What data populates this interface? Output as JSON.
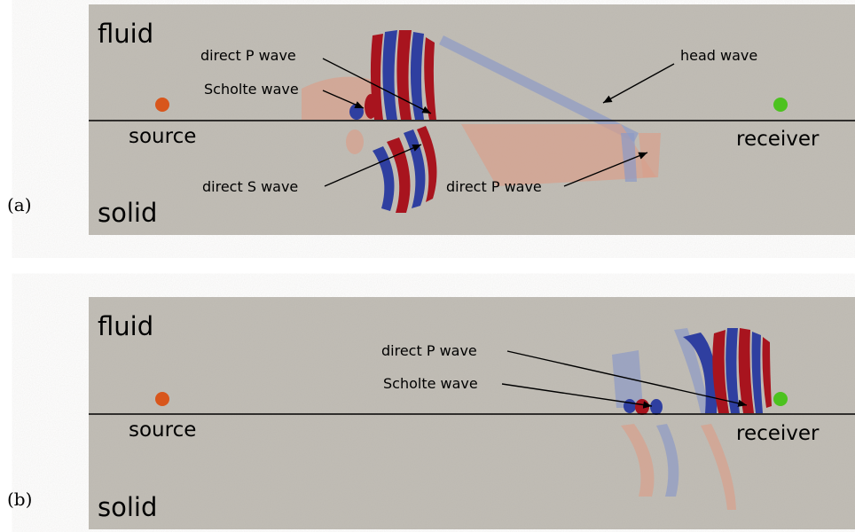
{
  "panels": [
    {
      "label": "(a)",
      "top_medium": "fluid",
      "bottom_medium": "solid",
      "source": "source",
      "receiver": "receiver",
      "annotations": [
        "direct P wave",
        "Scholte wave",
        "head wave",
        "direct S wave",
        "direct P wave"
      ]
    },
    {
      "label": "(b)",
      "top_medium": "fluid",
      "bottom_medium": "solid",
      "source": "source",
      "receiver": "receiver",
      "annotations": [
        "direct P wave",
        "Scholte wave"
      ]
    }
  ]
}
